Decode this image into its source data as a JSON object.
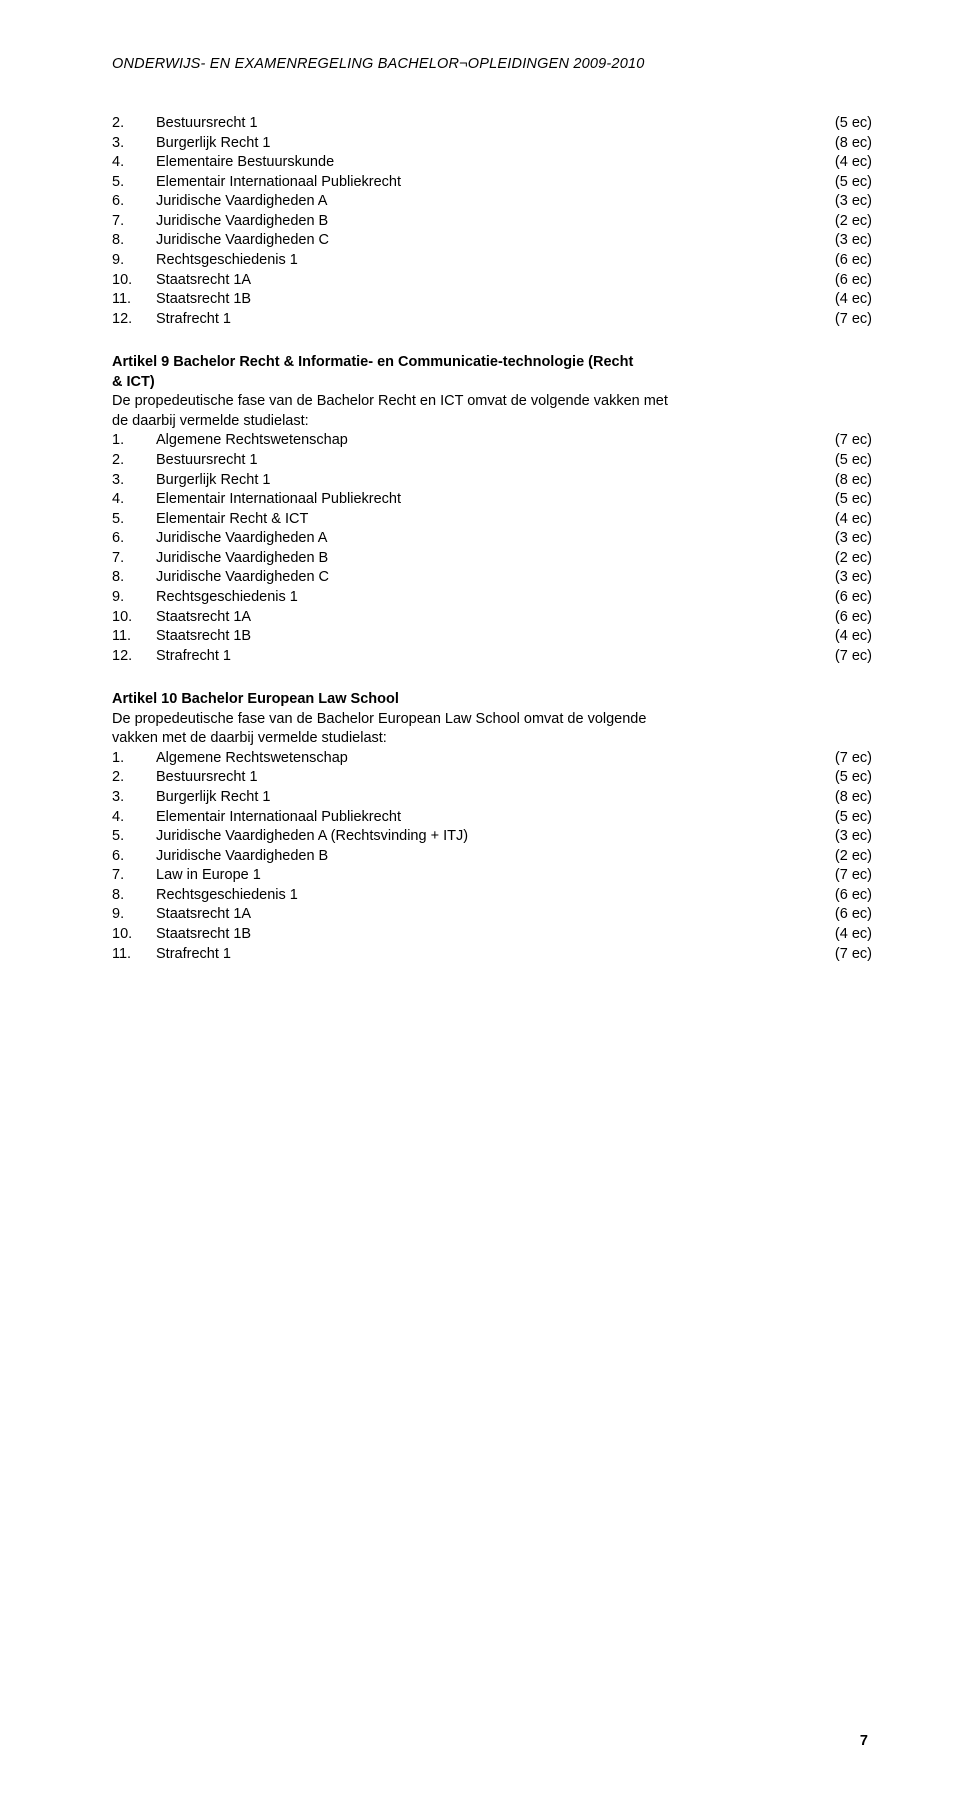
{
  "header": "ONDERWIJS- EN EXAMENREGELING BACHELOR¬OPLEIDINGEN 2009-2010",
  "page_number": "7",
  "colors": {
    "text": "#000000",
    "background": "#ffffff"
  },
  "typography": {
    "family": "Verdana",
    "body_size_pt": 11,
    "line_height": 1.35
  },
  "top_list": [
    {
      "n": "2.",
      "label": "Bestuursrecht 1",
      "ec": "(5 ec)"
    },
    {
      "n": "3.",
      "label": "Burgerlijk Recht 1",
      "ec": "(8 ec)"
    },
    {
      "n": "4.",
      "label": "Elementaire Bestuurskunde",
      "ec": "(4 ec)"
    },
    {
      "n": "5.",
      "label": "Elementair Internationaal Publiekrecht",
      "ec": "(5 ec)"
    },
    {
      "n": "6.",
      "label": "Juridische Vaardigheden A",
      "ec": "(3 ec)"
    },
    {
      "n": "7.",
      "label": "Juridische Vaardigheden B",
      "ec": "(2 ec)"
    },
    {
      "n": "8.",
      "label": "Juridische Vaardigheden C",
      "ec": "(3 ec)"
    },
    {
      "n": "9.",
      "label": "Rechtsgeschiedenis 1",
      "ec": "(6 ec)"
    },
    {
      "n": "10.",
      "label": "Staatsrecht 1A",
      "ec": "(6 ec)"
    },
    {
      "n": "11.",
      "label": "Staatsrecht 1B",
      "ec": "(4 ec)"
    },
    {
      "n": "12.",
      "label": "Strafrecht 1",
      "ec": "(7 ec)"
    }
  ],
  "article9": {
    "heading_l1": "Artikel 9  Bachelor Recht & Informatie- en Communicatie-technologie (Recht",
    "heading_l2": "& ICT)",
    "intro_l1": "De propedeutische fase van de Bachelor Recht en ICT omvat de volgende vakken met",
    "intro_l2": "de daarbij vermelde studielast:",
    "items": [
      {
        "n": "1.",
        "label": "Algemene Rechtswetenschap",
        "ec": "(7 ec)"
      },
      {
        "n": "2.",
        "label": "Bestuursrecht 1",
        "ec": "(5 ec)"
      },
      {
        "n": "3.",
        "label": "Burgerlijk Recht 1",
        "ec": "(8 ec)"
      },
      {
        "n": "4.",
        "label": "Elementair Internationaal Publiekrecht",
        "ec": "(5 ec)"
      },
      {
        "n": "5.",
        "label": "Elementair Recht & ICT",
        "ec": "(4 ec)"
      },
      {
        "n": "6.",
        "label": "Juridische Vaardigheden A",
        "ec": "(3 ec)"
      },
      {
        "n": "7.",
        "label": "Juridische Vaardigheden B",
        "ec": "(2 ec)"
      },
      {
        "n": "8.",
        "label": "Juridische Vaardigheden C",
        "ec": "(3 ec)"
      },
      {
        "n": "9.",
        "label": "Rechtsgeschiedenis 1",
        "ec": "(6 ec)"
      },
      {
        "n": "10.",
        "label": "Staatsrecht 1A",
        "ec": "(6 ec)"
      },
      {
        "n": "11.",
        "label": "Staatsrecht 1B",
        "ec": "(4 ec)"
      },
      {
        "n": "12.",
        "label": "Strafrecht 1",
        "ec": "(7 ec)"
      }
    ]
  },
  "article10": {
    "heading": "Artikel 10 Bachelor European Law School",
    "intro_l1": "De propedeutische fase van de Bachelor European Law School omvat de volgende",
    "intro_l2": "vakken met de daarbij vermelde studielast:",
    "items": [
      {
        "n": "1.",
        "label": "Algemene Rechtswetenschap",
        "ec": "(7 ec)"
      },
      {
        "n": "2.",
        "label": "Bestuursrecht 1",
        "ec": "(5 ec)"
      },
      {
        "n": "3.",
        "label": "Burgerlijk Recht 1",
        "ec": "(8 ec)"
      },
      {
        "n": "4.",
        "label": "Elementair Internationaal Publiekrecht",
        "ec": "(5 ec)"
      },
      {
        "n": "5.",
        "label": "Juridische Vaardigheden A (Rechtsvinding + ITJ)",
        "ec": "(3 ec)"
      },
      {
        "n": "6.",
        "label": "Juridische Vaardigheden B",
        "ec": "(2 ec)"
      },
      {
        "n": "7.",
        "label": "Law in Europe 1",
        "ec": "(7 ec)"
      },
      {
        "n": "8.",
        "label": "Rechtsgeschiedenis 1",
        "ec": "(6 ec)"
      },
      {
        "n": "9.",
        "label": "Staatsrecht 1A",
        "ec": "(6 ec)"
      },
      {
        "n": "10.",
        "label": "Staatsrecht 1B",
        "ec": "(4 ec)"
      },
      {
        "n": "11.",
        "label": "Strafrecht 1",
        "ec": "(7 ec)"
      }
    ]
  }
}
